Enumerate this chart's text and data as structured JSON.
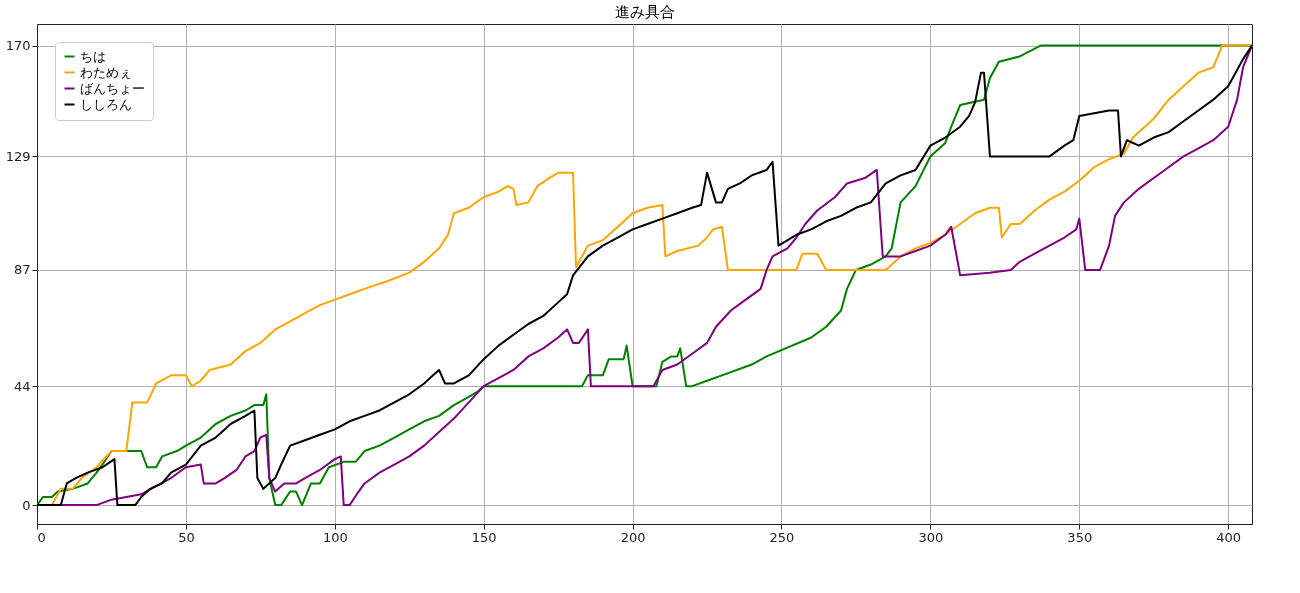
{
  "chart_data": {
    "type": "line",
    "title": "進み具合",
    "xlim": [
      0,
      408
    ],
    "ylim": [
      -7,
      178
    ],
    "xticks": [
      0,
      50,
      100,
      150,
      200,
      250,
      300,
      350,
      400
    ],
    "yticks": [
      0,
      44,
      87,
      129,
      170
    ],
    "grid": true,
    "legend": "top left",
    "line_style": "solid",
    "marker": "none",
    "series": [
      {
        "name": "ちは",
        "color": "#008000",
        "x": [
          0,
          2,
          5,
          7,
          12,
          17,
          20,
          22,
          25,
          35,
          37,
          40,
          42,
          47,
          50,
          55,
          60,
          65,
          70,
          73,
          76,
          77,
          78,
          80,
          82,
          85,
          87,
          89,
          92,
          95,
          98,
          103,
          107,
          110,
          115,
          120,
          125,
          130,
          135,
          140,
          145,
          148,
          150,
          183,
          185,
          190,
          192,
          197,
          198,
          200,
          208,
          210,
          213,
          215,
          216,
          218,
          220,
          225,
          230,
          240,
          245,
          260,
          265,
          270,
          272,
          275,
          280,
          285,
          287,
          290,
          295,
          300,
          305,
          307,
          310,
          318,
          320,
          323,
          330,
          337,
          408
        ],
        "values": [
          0,
          3,
          3,
          5,
          6,
          8,
          12,
          15,
          20,
          20,
          14,
          14,
          18,
          20,
          22,
          25,
          30,
          33,
          35,
          37,
          37,
          41,
          10,
          0,
          0,
          5,
          5,
          0,
          8,
          8,
          14,
          16,
          16,
          20,
          22,
          25,
          28,
          31,
          33,
          37,
          40,
          42,
          44,
          44,
          48,
          48,
          54,
          54,
          59,
          44,
          44,
          53,
          55,
          55,
          58,
          44,
          44,
          46,
          48,
          52,
          55,
          62,
          66,
          72,
          80,
          87,
          89,
          92,
          95,
          112,
          118,
          129,
          134,
          140,
          148,
          150,
          158,
          164,
          166,
          170,
          170
        ]
      },
      {
        "name": "わためぇ",
        "color": "#ffa500",
        "x": [
          0,
          5,
          8,
          12,
          15,
          20,
          25,
          30,
          32,
          37,
          40,
          45,
          50,
          52,
          55,
          58,
          65,
          70,
          75,
          80,
          85,
          90,
          95,
          100,
          105,
          110,
          118,
          125,
          130,
          135,
          138,
          140,
          145,
          150,
          155,
          158,
          160,
          161,
          165,
          168,
          172,
          175,
          180,
          181,
          185,
          190,
          195,
          200,
          205,
          210,
          211,
          215,
          222,
          225,
          227,
          230,
          232,
          255,
          257,
          262,
          265,
          285,
          290,
          295,
          300,
          305,
          310,
          315,
          320,
          323,
          324,
          327,
          330,
          335,
          340,
          345,
          350,
          355,
          360,
          365,
          368,
          372,
          375,
          380,
          385,
          390,
          395,
          398,
          408
        ],
        "values": [
          0,
          0,
          6,
          6,
          10,
          14,
          20,
          20,
          38,
          38,
          45,
          48,
          48,
          44,
          46,
          50,
          52,
          57,
          60,
          65,
          68,
          71,
          74,
          76,
          78,
          80,
          83,
          86,
          90,
          95,
          100,
          108,
          110,
          114,
          116,
          118,
          117,
          111,
          112,
          118,
          121,
          123,
          123,
          88,
          96,
          98,
          103,
          108,
          110,
          111,
          92,
          94,
          96,
          99,
          102,
          103,
          87,
          87,
          93,
          93,
          87,
          87,
          92,
          95,
          97,
          100,
          104,
          108,
          110,
          110,
          99,
          104,
          104,
          109,
          113,
          116,
          120,
          125,
          128,
          130,
          136,
          140,
          143,
          150,
          155,
          160,
          162,
          170,
          170
        ]
      },
      {
        "name": "ばんちょー",
        "color": "#800080",
        "x": [
          0,
          20,
          25,
          30,
          35,
          40,
          45,
          50,
          55,
          56,
          60,
          63,
          67,
          70,
          73,
          75,
          77,
          78,
          80,
          83,
          87,
          90,
          95,
          100,
          102,
          103,
          105,
          108,
          110,
          115,
          120,
          125,
          130,
          135,
          140,
          145,
          150,
          160,
          165,
          170,
          175,
          178,
          180,
          182,
          185,
          186,
          200,
          207,
          210,
          215,
          220,
          225,
          228,
          233,
          238,
          243,
          245,
          247,
          252,
          255,
          258,
          262,
          268,
          272,
          278,
          282,
          284,
          290,
          295,
          300,
          305,
          307,
          310,
          320,
          327,
          330,
          335,
          340,
          345,
          349,
          350,
          352,
          357,
          360,
          362,
          365,
          370,
          375,
          380,
          385,
          390,
          395,
          400,
          403,
          405,
          408
        ],
        "values": [
          0,
          0,
          2,
          3,
          4,
          7,
          10,
          14,
          15,
          8,
          8,
          10,
          13,
          18,
          20,
          25,
          26,
          10,
          5,
          8,
          8,
          10,
          13,
          17,
          18,
          0,
          0,
          5,
          8,
          12,
          15,
          18,
          22,
          27,
          32,
          38,
          44,
          50,
          55,
          58,
          62,
          65,
          60,
          60,
          65,
          44,
          44,
          44,
          50,
          52,
          56,
          60,
          66,
          72,
          76,
          80,
          87,
          92,
          95,
          99,
          104,
          109,
          114,
          119,
          121,
          124,
          92,
          92,
          94,
          96,
          100,
          103,
          85,
          86,
          87,
          90,
          93,
          96,
          99,
          102,
          106,
          87,
          87,
          96,
          107,
          112,
          117,
          121,
          125,
          129,
          132,
          135,
          140,
          150,
          162,
          170
        ]
      },
      {
        "name": "ししろん",
        "color": "#000000",
        "x": [
          0,
          8,
          10,
          13,
          17,
          22,
          26,
          27,
          33,
          35,
          38,
          42,
          45,
          50,
          55,
          60,
          63,
          65,
          70,
          73,
          74,
          76,
          80,
          82,
          85,
          90,
          95,
          100,
          105,
          110,
          115,
          120,
          125,
          130,
          133,
          135,
          137,
          140,
          145,
          150,
          155,
          160,
          165,
          170,
          175,
          178,
          180,
          185,
          190,
          195,
          200,
          205,
          210,
          215,
          220,
          223,
          225,
          228,
          230,
          232,
          236,
          240,
          245,
          247,
          249,
          255,
          260,
          265,
          270,
          275,
          280,
          285,
          290,
          295,
          300,
          305,
          310,
          313,
          315,
          317,
          318,
          320,
          340,
          345,
          348,
          350,
          355,
          360,
          363,
          364,
          366,
          370,
          375,
          380,
          385,
          390,
          395,
          400,
          405,
          408
        ],
        "values": [
          0,
          0,
          8,
          10,
          12,
          14,
          17,
          0,
          0,
          3,
          6,
          8,
          12,
          15,
          22,
          25,
          28,
          30,
          33,
          35,
          10,
          6,
          10,
          15,
          22,
          24,
          26,
          28,
          31,
          33,
          35,
          38,
          41,
          45,
          48,
          50,
          45,
          45,
          48,
          54,
          59,
          63,
          67,
          70,
          75,
          78,
          85,
          92,
          96,
          99,
          102,
          104,
          106,
          108,
          110,
          111,
          123,
          112,
          112,
          117,
          119,
          122,
          124,
          127,
          96,
          100,
          102,
          105,
          107,
          110,
          112,
          119,
          122,
          124,
          133,
          136,
          140,
          144,
          149,
          160,
          160,
          129,
          129,
          133,
          135,
          144,
          145,
          146,
          146,
          129,
          135,
          133,
          136,
          138,
          142,
          146,
          150,
          155,
          165,
          170
        ]
      }
    ]
  }
}
